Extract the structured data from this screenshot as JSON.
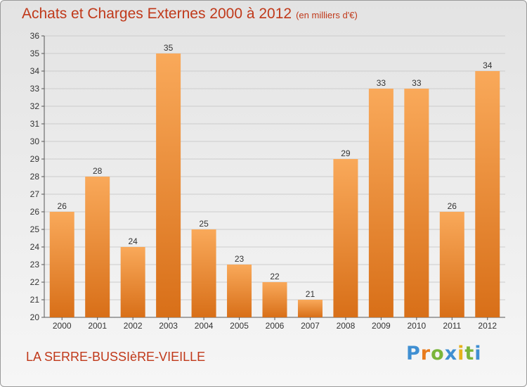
{
  "header": {
    "title": "Achats et Charges Externes 2000 à 2012",
    "unit": "(en milliers d'€)"
  },
  "footer": {
    "commune": "LA SERRE-BUSSIèRE-VIEILLE",
    "logo": "Proxiti"
  },
  "colors": {
    "bar_light": "#f9a95a",
    "bar_dark": "#d86f18",
    "title": "#c0391a",
    "grid": "#cccccc"
  },
  "chart_data": {
    "type": "bar",
    "categories": [
      "2000",
      "2001",
      "2002",
      "2003",
      "2004",
      "2005",
      "2006",
      "2007",
      "2008",
      "2009",
      "2010",
      "2011",
      "2012"
    ],
    "values": [
      26,
      28,
      24,
      35,
      25,
      23,
      22,
      21,
      29,
      33,
      33,
      26,
      34
    ],
    "title": "Achats et Charges Externes 2000 à 2012",
    "ylim": [
      20,
      36
    ],
    "yticks": [
      20,
      21,
      22,
      23,
      24,
      25,
      26,
      27,
      28,
      29,
      30,
      31,
      32,
      33,
      34,
      35,
      36
    ],
    "grid": true,
    "data_labels": true
  }
}
